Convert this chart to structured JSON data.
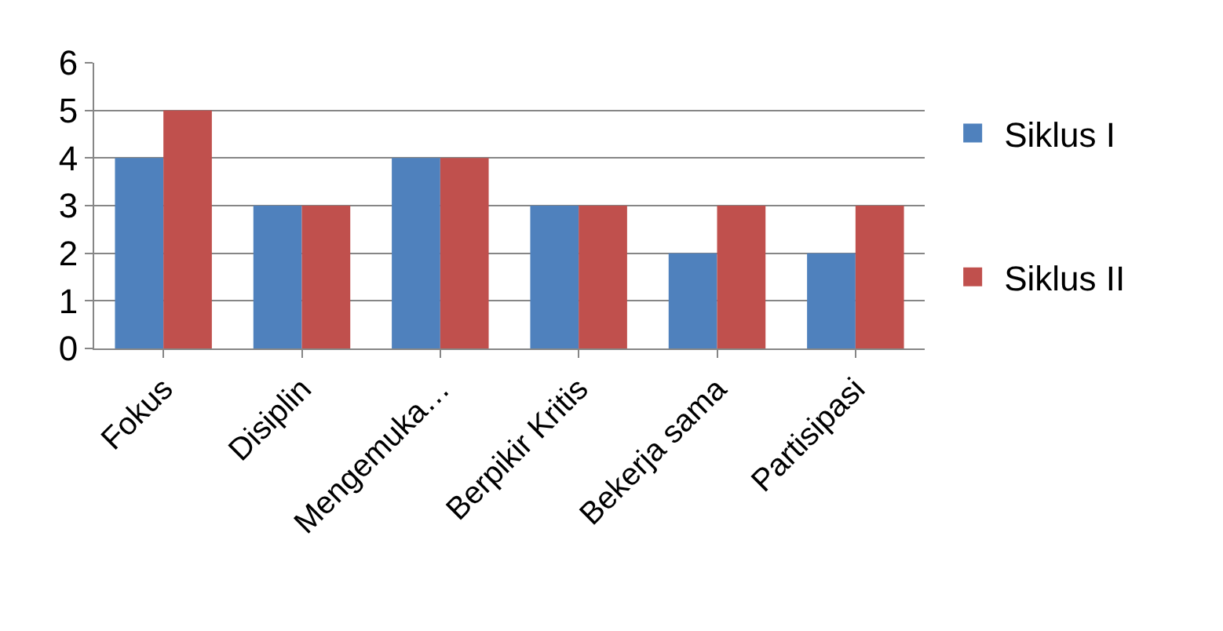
{
  "chart_data": {
    "type": "bar",
    "categories": [
      "Fokus",
      "Disiplin",
      "Mengemuka…",
      "Berpikir Kritis",
      "Bekerja sama",
      "Partisipasi"
    ],
    "series": [
      {
        "name": "Siklus I",
        "color": "#4f81bd",
        "values": [
          4,
          3,
          4,
          3,
          2,
          2
        ]
      },
      {
        "name": "Siklus II",
        "color": "#c0504d",
        "values": [
          5,
          3,
          4,
          3,
          3,
          3
        ]
      }
    ],
    "ylim": [
      0,
      6
    ],
    "yticks": [
      0,
      1,
      2,
      3,
      4,
      5,
      6
    ],
    "grid": "y",
    "legend": "right"
  }
}
